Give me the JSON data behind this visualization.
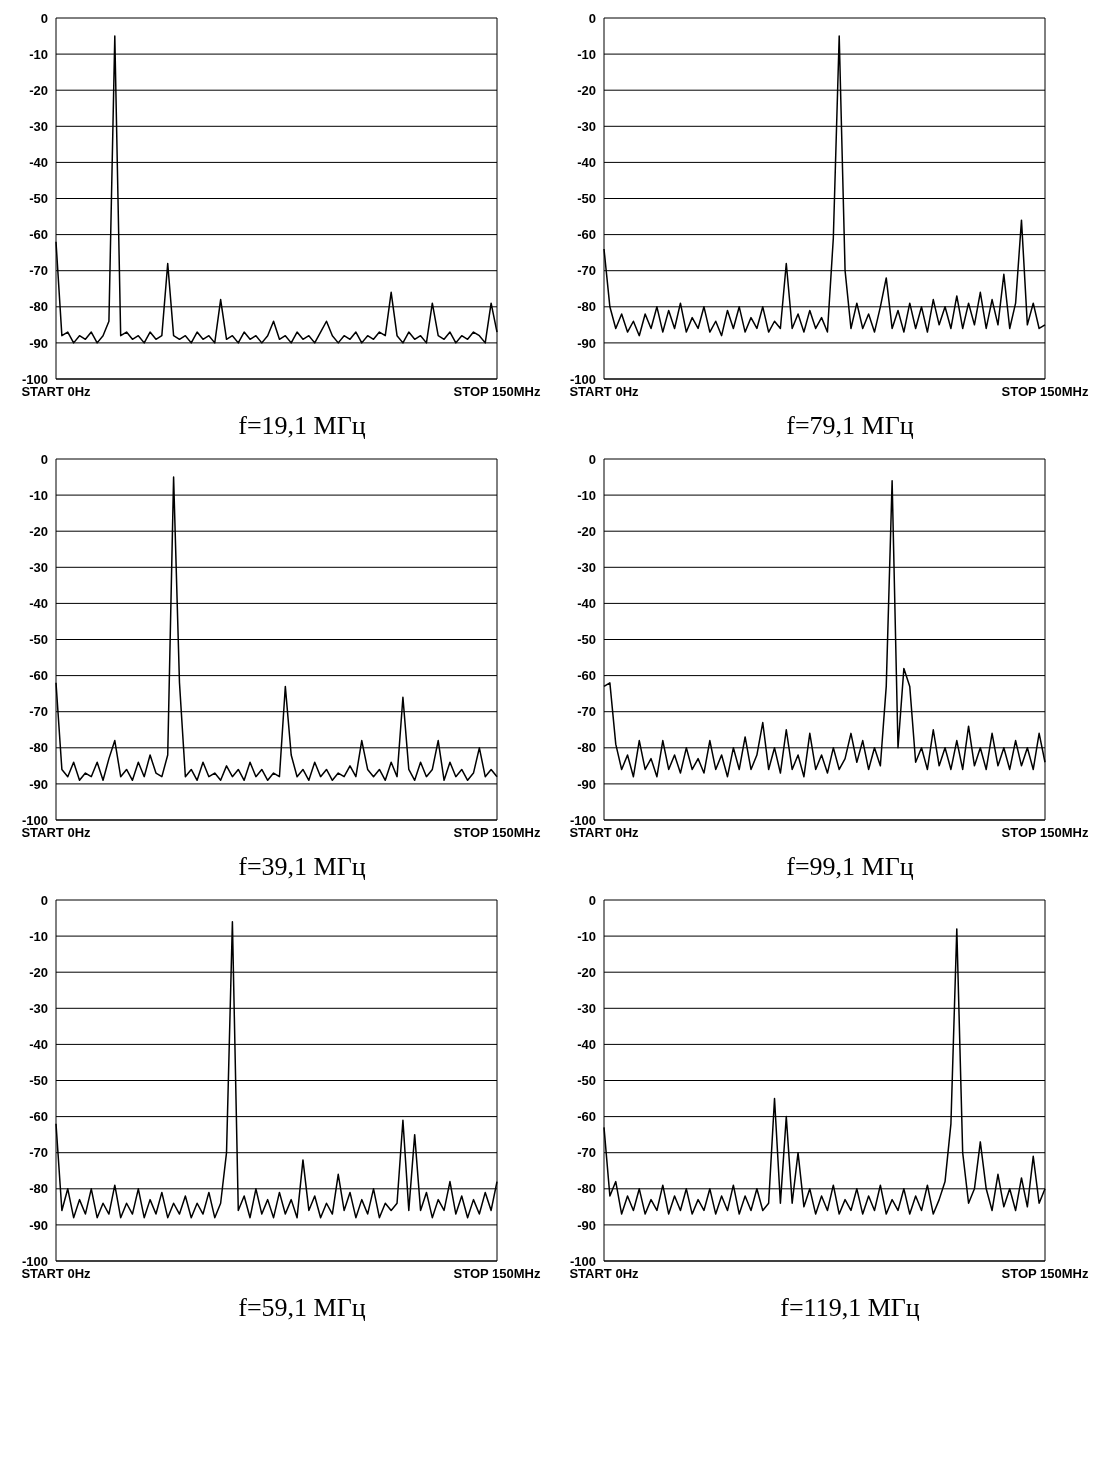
{
  "chart_data": [
    {
      "type": "line",
      "title": "f=19,1 МГц",
      "color": "#000000",
      "grid": "y",
      "ylim": [
        -100,
        0
      ],
      "yticks": [
        -100,
        -90,
        -80,
        -70,
        -60,
        -50,
        -40,
        -30,
        -20,
        -10,
        0
      ],
      "categories": [
        "START 0Hz",
        null,
        null,
        null,
        null,
        null,
        null,
        null,
        null,
        null,
        null,
        null,
        null,
        null,
        null,
        null,
        null,
        null,
        null,
        null,
        null,
        null,
        null,
        null,
        null,
        null,
        null,
        null,
        null,
        null,
        null,
        null,
        null,
        null,
        null,
        null,
        null,
        null,
        null,
        null,
        null,
        null,
        null,
        null,
        null,
        null,
        null,
        null,
        null,
        null,
        null,
        null,
        null,
        null,
        null,
        null,
        null,
        null,
        null,
        null,
        null,
        null,
        null,
        null,
        null,
        null,
        null,
        null,
        null,
        null,
        null,
        null,
        null,
        null,
        null,
        "STOP 150MHz"
      ],
      "values": [
        -62,
        -88,
        -87,
        -90,
        -88,
        -89,
        -87,
        -90,
        -88,
        -84,
        -5,
        -88,
        -87,
        -89,
        -88,
        -90,
        -87,
        -89,
        -88,
        -68,
        -88,
        -89,
        -88,
        -90,
        -87,
        -89,
        -88,
        -90,
        -78,
        -89,
        -88,
        -90,
        -87,
        -89,
        -88,
        -90,
        -88,
        -84,
        -89,
        -88,
        -90,
        -87,
        -89,
        -88,
        -90,
        -87,
        -84,
        -88,
        -90,
        -88,
        -89,
        -87,
        -90,
        -88,
        -89,
        -87,
        -88,
        -76,
        -88,
        -90,
        -87,
        -89,
        -88,
        -90,
        -79,
        -88,
        -89,
        -87,
        -90,
        -88,
        -89,
        -87,
        -88,
        -90,
        -79,
        -87
      ]
    },
    {
      "type": "line",
      "title": "f=79,1 МГц",
      "color": "#000000",
      "grid": "y",
      "ylim": [
        -100,
        0
      ],
      "yticks": [
        -100,
        -90,
        -80,
        -70,
        -60,
        -50,
        -40,
        -30,
        -20,
        -10,
        0
      ],
      "categories": [
        "START 0Hz",
        null,
        null,
        null,
        null,
        null,
        null,
        null,
        null,
        null,
        null,
        null,
        null,
        null,
        null,
        null,
        null,
        null,
        null,
        null,
        null,
        null,
        null,
        null,
        null,
        null,
        null,
        null,
        null,
        null,
        null,
        null,
        null,
        null,
        null,
        null,
        null,
        null,
        null,
        null,
        null,
        null,
        null,
        null,
        null,
        null,
        null,
        null,
        null,
        null,
        null,
        null,
        null,
        null,
        null,
        null,
        null,
        null,
        null,
        null,
        null,
        null,
        null,
        null,
        null,
        null,
        null,
        null,
        null,
        null,
        null,
        null,
        null,
        null,
        null,
        "STOP 150MHz"
      ],
      "values": [
        -64,
        -80,
        -86,
        -82,
        -87,
        -84,
        -88,
        -82,
        -86,
        -80,
        -87,
        -81,
        -86,
        -79,
        -87,
        -83,
        -86,
        -80,
        -87,
        -84,
        -88,
        -81,
        -86,
        -80,
        -87,
        -83,
        -86,
        -80,
        -87,
        -84,
        -86,
        -68,
        -86,
        -82,
        -87,
        -81,
        -86,
        -83,
        -87,
        -61,
        -5,
        -70,
        -86,
        -79,
        -86,
        -82,
        -87,
        -80,
        -72,
        -86,
        -81,
        -87,
        -79,
        -86,
        -80,
        -87,
        -78,
        -85,
        -80,
        -86,
        -77,
        -86,
        -79,
        -85,
        -76,
        -86,
        -78,
        -85,
        -71,
        -86,
        -79,
        -56,
        -85,
        -79,
        -86,
        -85
      ]
    },
    {
      "type": "line",
      "title": "f=39,1 МГц",
      "color": "#000000",
      "grid": "y",
      "ylim": [
        -100,
        0
      ],
      "yticks": [
        -100,
        -90,
        -80,
        -70,
        -60,
        -50,
        -40,
        -30,
        -20,
        -10,
        0
      ],
      "categories": [
        "START 0Hz",
        null,
        null,
        null,
        null,
        null,
        null,
        null,
        null,
        null,
        null,
        null,
        null,
        null,
        null,
        null,
        null,
        null,
        null,
        null,
        null,
        null,
        null,
        null,
        null,
        null,
        null,
        null,
        null,
        null,
        null,
        null,
        null,
        null,
        null,
        null,
        null,
        null,
        null,
        null,
        null,
        null,
        null,
        null,
        null,
        null,
        null,
        null,
        null,
        null,
        null,
        null,
        null,
        null,
        null,
        null,
        null,
        null,
        null,
        null,
        null,
        null,
        null,
        null,
        null,
        null,
        null,
        null,
        null,
        null,
        null,
        null,
        null,
        null,
        null,
        "STOP 150MHz"
      ],
      "values": [
        -62,
        -86,
        -88,
        -84,
        -89,
        -87,
        -88,
        -84,
        -89,
        -83,
        -78,
        -88,
        -86,
        -89,
        -84,
        -88,
        -82,
        -87,
        -88,
        -82,
        -5,
        -62,
        -88,
        -86,
        -89,
        -84,
        -88,
        -87,
        -89,
        -85,
        -88,
        -86,
        -89,
        -84,
        -88,
        -86,
        -89,
        -87,
        -88,
        -63,
        -82,
        -88,
        -86,
        -89,
        -84,
        -88,
        -86,
        -89,
        -87,
        -88,
        -85,
        -88,
        -78,
        -86,
        -88,
        -86,
        -89,
        -84,
        -88,
        -66,
        -86,
        -89,
        -84,
        -88,
        -86,
        -78,
        -89,
        -84,
        -88,
        -86,
        -89,
        -87,
        -80,
        -88,
        -86,
        -88
      ]
    },
    {
      "type": "line",
      "title": "f=99,1 МГц",
      "color": "#000000",
      "grid": "y",
      "ylim": [
        -100,
        0
      ],
      "yticks": [
        -100,
        -90,
        -80,
        -70,
        -60,
        -50,
        -40,
        -30,
        -20,
        -10,
        0
      ],
      "categories": [
        "START 0Hz",
        null,
        null,
        null,
        null,
        null,
        null,
        null,
        null,
        null,
        null,
        null,
        null,
        null,
        null,
        null,
        null,
        null,
        null,
        null,
        null,
        null,
        null,
        null,
        null,
        null,
        null,
        null,
        null,
        null,
        null,
        null,
        null,
        null,
        null,
        null,
        null,
        null,
        null,
        null,
        null,
        null,
        null,
        null,
        null,
        null,
        null,
        null,
        null,
        null,
        null,
        null,
        null,
        null,
        null,
        null,
        null,
        null,
        null,
        null,
        null,
        null,
        null,
        null,
        null,
        null,
        null,
        null,
        null,
        null,
        null,
        null,
        null,
        null,
        null,
        "STOP 150MHz"
      ],
      "values": [
        -63,
        -62,
        -79,
        -86,
        -82,
        -88,
        -78,
        -86,
        -83,
        -88,
        -78,
        -86,
        -82,
        -87,
        -80,
        -86,
        -83,
        -87,
        -78,
        -86,
        -82,
        -88,
        -80,
        -86,
        -77,
        -86,
        -82,
        -73,
        -86,
        -80,
        -87,
        -75,
        -86,
        -82,
        -88,
        -76,
        -86,
        -82,
        -87,
        -80,
        -86,
        -83,
        -76,
        -84,
        -78,
        -86,
        -80,
        -85,
        -63,
        -6,
        -80,
        -58,
        -63,
        -84,
        -80,
        -86,
        -75,
        -85,
        -80,
        -86,
        -78,
        -86,
        -74,
        -85,
        -80,
        -86,
        -76,
        -85,
        -80,
        -86,
        -78,
        -85,
        -80,
        -86,
        -76,
        -84
      ]
    },
    {
      "type": "line",
      "title": "f=59,1 МГц",
      "color": "#000000",
      "grid": "y",
      "ylim": [
        -100,
        0
      ],
      "yticks": [
        -100,
        -90,
        -80,
        -70,
        -60,
        -50,
        -40,
        -30,
        -20,
        -10,
        0
      ],
      "categories": [
        "START 0Hz",
        null,
        null,
        null,
        null,
        null,
        null,
        null,
        null,
        null,
        null,
        null,
        null,
        null,
        null,
        null,
        null,
        null,
        null,
        null,
        null,
        null,
        null,
        null,
        null,
        null,
        null,
        null,
        null,
        null,
        null,
        null,
        null,
        null,
        null,
        null,
        null,
        null,
        null,
        null,
        null,
        null,
        null,
        null,
        null,
        null,
        null,
        null,
        null,
        null,
        null,
        null,
        null,
        null,
        null,
        null,
        null,
        null,
        null,
        null,
        null,
        null,
        null,
        null,
        null,
        null,
        null,
        null,
        null,
        null,
        null,
        null,
        null,
        null,
        null,
        "STOP 150MHz"
      ],
      "values": [
        -62,
        -86,
        -80,
        -88,
        -83,
        -87,
        -80,
        -88,
        -84,
        -87,
        -79,
        -88,
        -84,
        -87,
        -80,
        -88,
        -83,
        -87,
        -81,
        -88,
        -84,
        -87,
        -82,
        -88,
        -84,
        -87,
        -81,
        -88,
        -84,
        -70,
        -6,
        -86,
        -82,
        -88,
        -80,
        -87,
        -83,
        -88,
        -81,
        -87,
        -83,
        -88,
        -72,
        -86,
        -82,
        -88,
        -84,
        -87,
        -76,
        -86,
        -81,
        -88,
        -83,
        -87,
        -80,
        -88,
        -84,
        -86,
        -84,
        -61,
        -86,
        -65,
        -86,
        -81,
        -88,
        -83,
        -86,
        -78,
        -87,
        -82,
        -88,
        -83,
        -87,
        -81,
        -86,
        -78
      ]
    },
    {
      "type": "line",
      "title": "f=119,1 МГц",
      "color": "#000000",
      "grid": "y",
      "ylim": [
        -100,
        0
      ],
      "yticks": [
        -100,
        -90,
        -80,
        -70,
        -60,
        -50,
        -40,
        -30,
        -20,
        -10,
        0
      ],
      "categories": [
        "START 0Hz",
        null,
        null,
        null,
        null,
        null,
        null,
        null,
        null,
        null,
        null,
        null,
        null,
        null,
        null,
        null,
        null,
        null,
        null,
        null,
        null,
        null,
        null,
        null,
        null,
        null,
        null,
        null,
        null,
        null,
        null,
        null,
        null,
        null,
        null,
        null,
        null,
        null,
        null,
        null,
        null,
        null,
        null,
        null,
        null,
        null,
        null,
        null,
        null,
        null,
        null,
        null,
        null,
        null,
        null,
        null,
        null,
        null,
        null,
        null,
        null,
        null,
        null,
        null,
        null,
        null,
        null,
        null,
        null,
        null,
        null,
        null,
        null,
        null,
        null,
        "STOP 150MHz"
      ],
      "values": [
        -63,
        -82,
        -78,
        -87,
        -82,
        -86,
        -80,
        -87,
        -83,
        -86,
        -79,
        -87,
        -82,
        -86,
        -80,
        -87,
        -83,
        -86,
        -80,
        -87,
        -82,
        -86,
        -79,
        -87,
        -82,
        -86,
        -80,
        -86,
        -84,
        -55,
        -84,
        -60,
        -84,
        -70,
        -85,
        -80,
        -87,
        -82,
        -86,
        -79,
        -87,
        -83,
        -86,
        -80,
        -87,
        -82,
        -86,
        -79,
        -87,
        -83,
        -86,
        -80,
        -87,
        -82,
        -86,
        -79,
        -87,
        -83,
        -78,
        -62,
        -8,
        -70,
        -84,
        -80,
        -67,
        -80,
        -86,
        -76,
        -85,
        -80,
        -86,
        -77,
        -85,
        -71,
        -84,
        -80
      ]
    }
  ]
}
